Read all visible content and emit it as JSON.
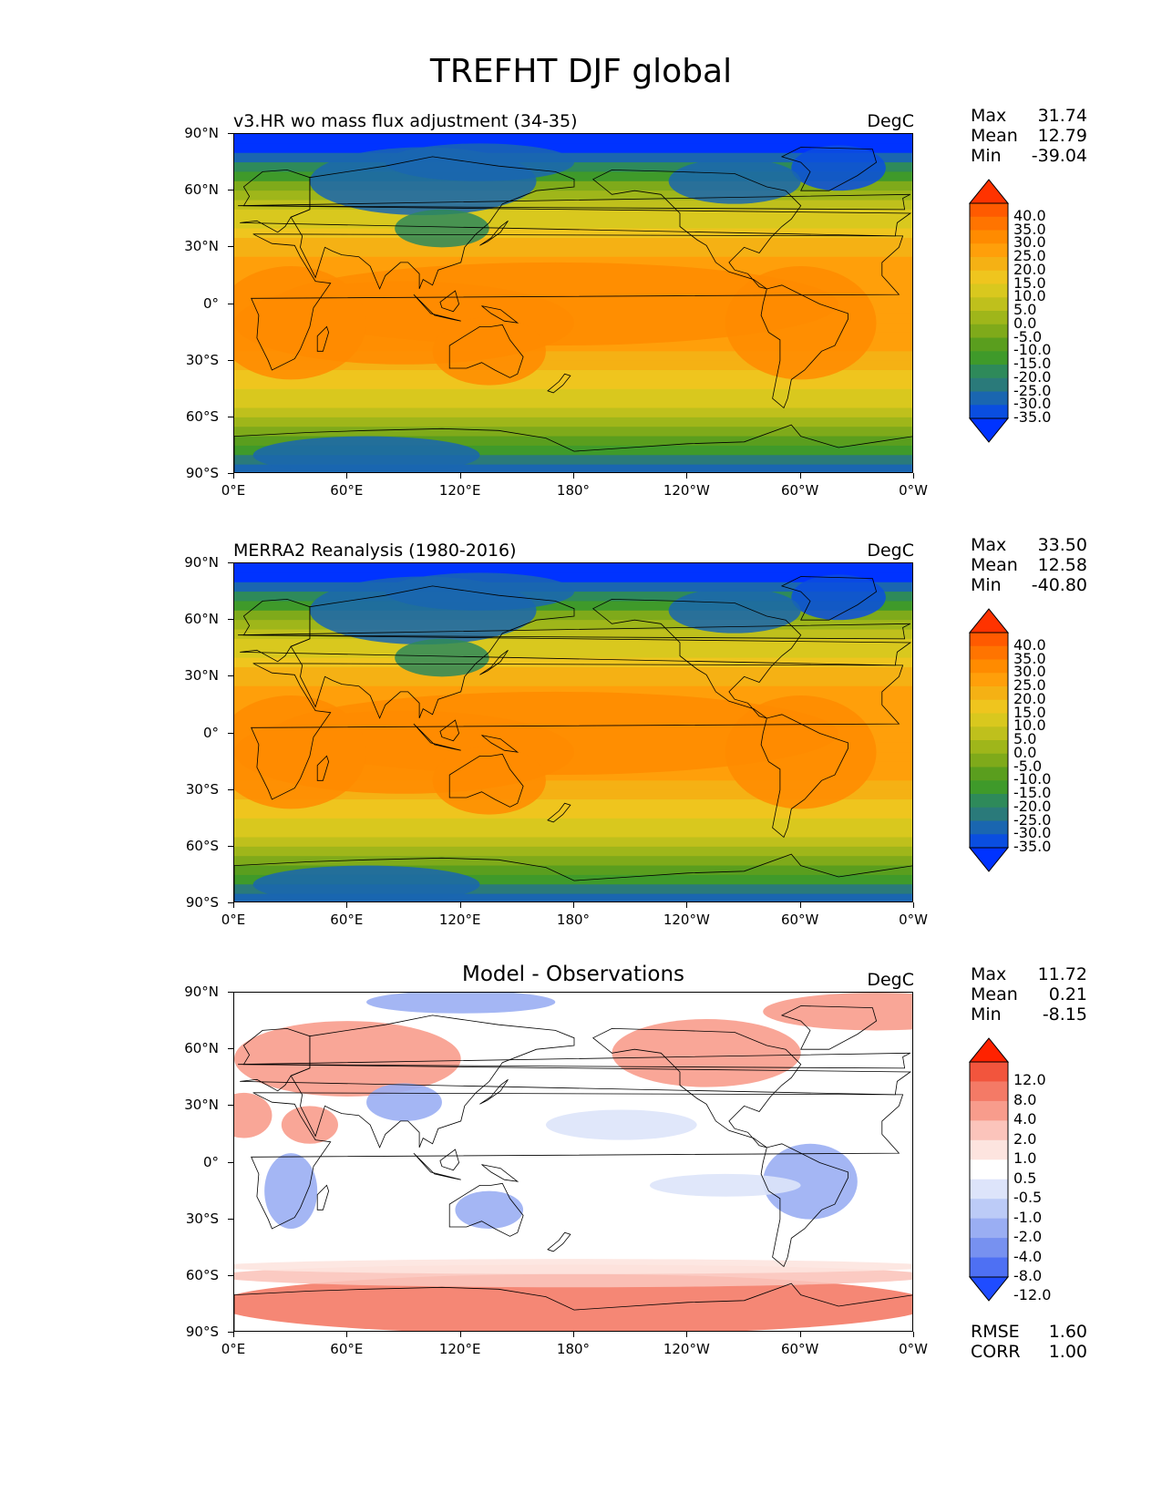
{
  "figure": {
    "title": "TREFHT DJF global"
  },
  "axes": {
    "lat_labels": [
      "90°N",
      "60°N",
      "30°N",
      "0°",
      "30°S",
      "60°S",
      "90°S"
    ],
    "lon_labels": [
      "0°E",
      "60°E",
      "120°E",
      "180°",
      "120°W",
      "60°W",
      "0°W"
    ]
  },
  "panels": [
    {
      "title": "v3.HR wo mass flux adjustment (34-35)",
      "units": "DegC",
      "stats": [
        {
          "label": "Max",
          "value": "31.74"
        },
        {
          "label": "Mean",
          "value": "12.79"
        },
        {
          "label": "Min",
          "value": "-39.04"
        }
      ]
    },
    {
      "title": "MERRA2 Reanalysis (1980-2016)",
      "units": "DegC",
      "stats": [
        {
          "label": "Max",
          "value": "33.50"
        },
        {
          "label": "Mean",
          "value": "12.58"
        },
        {
          "label": "Min",
          "value": "-40.80"
        }
      ]
    },
    {
      "title": "Model - Observations",
      "units": "DegC",
      "stats": [
        {
          "label": "Max",
          "value": "11.72"
        },
        {
          "label": "Mean",
          "value": "0.21"
        },
        {
          "label": "Min",
          "value": "-8.15"
        }
      ],
      "metrics": [
        {
          "label": "RMSE",
          "value": "1.60"
        },
        {
          "label": "CORR",
          "value": "1.00"
        }
      ]
    }
  ],
  "colorbars": {
    "temperature": {
      "labels": [
        "40.0",
        "35.0",
        "30.0",
        "25.0",
        "20.0",
        "15.0",
        "10.0",
        "5.0",
        "0.0",
        "-5.0",
        "-10.0",
        "-15.0",
        "-20.0",
        "-25.0",
        "-30.0",
        "-35.0"
      ],
      "colors": [
        "#ff3300",
        "#ff5a00",
        "#ff7400",
        "#ff8b00",
        "#ff9f0a",
        "#f5b114",
        "#efc51e",
        "#d9c81e",
        "#bfc01c",
        "#9fb61a",
        "#7faa1a",
        "#5a9e1e",
        "#3f9a2a",
        "#2e8a5a",
        "#2a7a7a",
        "#1a66b0",
        "#0a4ee0",
        "#0033ff"
      ]
    },
    "difference": {
      "labels": [
        "12.0",
        "8.0",
        "4.0",
        "2.0",
        "1.0",
        "0.5",
        "-0.5",
        "-1.0",
        "-2.0",
        "-4.0",
        "-8.0",
        "-12.0"
      ],
      "colors": [
        "#ff2200",
        "#f2553d",
        "#f47a66",
        "#f89c8c",
        "#fbc4bb",
        "#fde4df",
        "#ffffff",
        "#dde4fa",
        "#bccbf7",
        "#9aaef3",
        "#7791f0",
        "#4e70f3",
        "#1f4cff"
      ]
    }
  }
}
